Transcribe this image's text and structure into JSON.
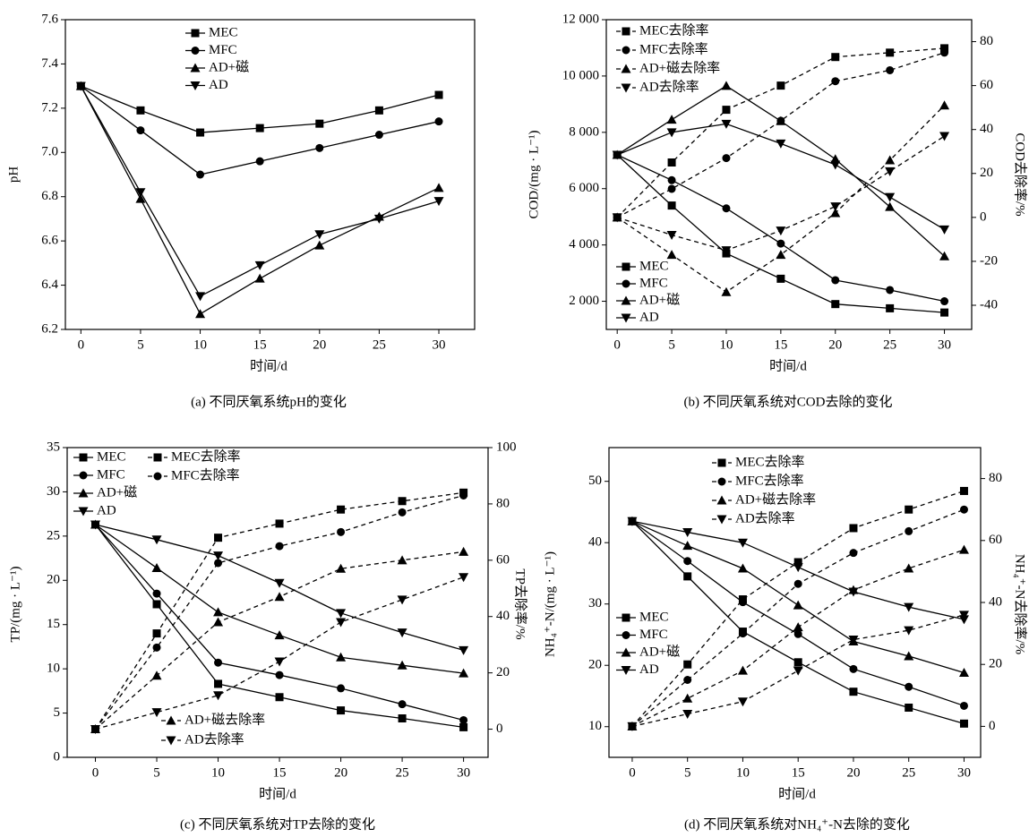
{
  "chart_data": [
    {
      "type": "line",
      "title": "(a) 不同厌氧系统pH的变化",
      "xlabel": "时间/d",
      "ylabel": "pH",
      "x": [
        0,
        5,
        10,
        15,
        20,
        25,
        30
      ],
      "xlim": [
        -1.3,
        33
      ],
      "xticks": [
        0,
        5,
        10,
        15,
        20,
        25,
        30
      ],
      "ylim": [
        6.2,
        7.6
      ],
      "yticks": [
        6.2,
        6.4,
        6.6,
        6.8,
        {
          "value": 7,
          "label": "7.0"
        },
        7.2,
        7.4,
        7.6
      ],
      "series": [
        {
          "name": "MEC",
          "color": "#000000",
          "marker": "square",
          "dashed": false,
          "values": [
            7.3,
            7.19,
            7.09,
            7.11,
            7.13,
            7.19,
            7.26
          ]
        },
        {
          "name": "MFC",
          "color": "#000000",
          "marker": "circle",
          "dashed": false,
          "values": [
            7.3,
            7.1,
            6.9,
            6.96,
            7.02,
            7.08,
            7.14
          ]
        },
        {
          "name": "AD+磁",
          "color": "#000000",
          "marker": "triangle-up",
          "dashed": false,
          "values": [
            7.3,
            6.79,
            6.27,
            6.43,
            6.58,
            6.71,
            6.84
          ]
        },
        {
          "name": "AD",
          "color": "#000000",
          "marker": "triangle-down",
          "dashed": false,
          "values": [
            7.3,
            6.82,
            6.35,
            6.49,
            6.63,
            6.7,
            6.78
          ]
        }
      ]
    },
    {
      "type": "line",
      "title": "(b) 不同厌氧系统对COD去除的变化",
      "xlabel": "时间/d",
      "ylabel": "COD/(mg · L⁻¹)",
      "y2label": "COD去除率/%",
      "x": [
        0,
        5,
        10,
        15,
        20,
        25,
        30
      ],
      "xlim": [
        -1,
        32.5
      ],
      "xticks": [
        0,
        5,
        10,
        15,
        20,
        25,
        30
      ],
      "ylim": [
        1000,
        12000
      ],
      "yticks": [
        {
          "value": 2000,
          "label": "2 000"
        },
        {
          "value": 4000,
          "label": "4 000"
        },
        {
          "value": 6000,
          "label": "6 000"
        },
        {
          "value": 8000,
          "label": "8 000"
        },
        {
          "value": 10000,
          "label": "10 000"
        },
        {
          "value": 12000,
          "label": "12 000"
        }
      ],
      "y2lim": [
        -51,
        90
      ],
      "y2ticks": [
        -40,
        -20,
        0,
        20,
        40,
        60,
        80
      ],
      "series": [
        {
          "name": "MEC",
          "color": "#000000",
          "marker": "square",
          "dashed": false,
          "values": [
            7200,
            5400,
            3700,
            2800,
            1900,
            1750,
            1600
          ]
        },
        {
          "name": "MFC",
          "color": "#000000",
          "marker": "circle",
          "dashed": false,
          "values": [
            7200,
            6300,
            5300,
            4050,
            2750,
            2400,
            2000
          ]
        },
        {
          "name": "AD+磁",
          "color": "#000000",
          "marker": "triangle-up",
          "dashed": false,
          "values": [
            7200,
            8450,
            9650,
            8400,
            7050,
            5350,
            3600
          ]
        },
        {
          "name": "AD",
          "color": "#000000",
          "marker": "triangle-down",
          "dashed": false,
          "values": [
            7200,
            8000,
            8300,
            7600,
            6850,
            5700,
            4550
          ]
        },
        {
          "name": "MEC去除率",
          "color": "#000000",
          "marker": "square",
          "dashed": true,
          "axis": "y2",
          "values": [
            0,
            25,
            49,
            60,
            73,
            75,
            77
          ]
        },
        {
          "name": "MFC去除率",
          "color": "#000000",
          "marker": "circle",
          "dashed": true,
          "axis": "y2",
          "values": [
            0,
            13,
            27,
            44,
            62,
            67,
            75
          ]
        },
        {
          "name": "AD+磁去除率",
          "color": "#000000",
          "marker": "triangle-up",
          "dashed": true,
          "axis": "y2",
          "values": [
            0,
            -17,
            -34,
            -17,
            2,
            26,
            51
          ]
        },
        {
          "name": "AD去除率",
          "color": "#000000",
          "marker": "triangle-down",
          "dashed": true,
          "axis": "y2",
          "values": [
            0,
            -8,
            -15,
            -6,
            5,
            21,
            37
          ]
        }
      ]
    },
    {
      "type": "line",
      "title": "(c) 不同厌氧系统对TP去除的变化",
      "xlabel": "时间/d",
      "ylabel": "TP/(mg · L⁻¹)",
      "y2label": "TP去除率/%",
      "x": [
        0,
        5,
        10,
        15,
        20,
        25,
        30
      ],
      "xlim": [
        -2.3,
        32
      ],
      "xticks": [
        0,
        5,
        10,
        15,
        20,
        25,
        30
      ],
      "ylim": [
        0,
        35
      ],
      "yticks": [
        0,
        5,
        10,
        15,
        20,
        25,
        30,
        35
      ],
      "y2lim": [
        -10,
        100
      ],
      "y2ticks": [
        0,
        20,
        40,
        60,
        80,
        100
      ],
      "series": [
        {
          "name": "MEC",
          "color": "#000000",
          "marker": "square",
          "dashed": false,
          "values": [
            26.3,
            17.3,
            8.3,
            6.8,
            5.3,
            4.4,
            3.4
          ]
        },
        {
          "name": "MFC",
          "color": "#000000",
          "marker": "circle",
          "dashed": false,
          "values": [
            26.3,
            18.5,
            10.7,
            9.3,
            7.8,
            6.0,
            4.2
          ]
        },
        {
          "name": "AD+磁",
          "color": "#000000",
          "marker": "triangle-up",
          "dashed": false,
          "values": [
            26.3,
            21.4,
            16.4,
            13.8,
            11.3,
            10.4,
            9.5
          ]
        },
        {
          "name": "AD",
          "color": "#000000",
          "marker": "triangle-down",
          "dashed": false,
          "values": [
            26.3,
            24.6,
            22.8,
            19.7,
            16.3,
            14.1,
            12.1
          ]
        },
        {
          "name": "MEC去除率",
          "color": "#000000",
          "marker": "square",
          "dashed": true,
          "axis": "y2",
          "values": [
            0,
            34,
            68,
            73,
            78,
            81,
            84
          ]
        },
        {
          "name": "MFC去除率",
          "color": "#000000",
          "marker": "circle",
          "dashed": true,
          "axis": "y2",
          "values": [
            0,
            29,
            59,
            65,
            70,
            77,
            83
          ]
        },
        {
          "name": "AD+磁去除率",
          "color": "#000000",
          "marker": "triangle-up",
          "dashed": true,
          "axis": "y2",
          "values": [
            0,
            19,
            38,
            47,
            57,
            60,
            63
          ]
        },
        {
          "name": "AD去除率",
          "color": "#000000",
          "marker": "triangle-down",
          "dashed": true,
          "axis": "y2",
          "values": [
            0,
            6,
            12,
            24,
            38,
            46,
            54
          ]
        }
      ]
    },
    {
      "type": "line",
      "title": "(d) 不同厌氧系统对NH₄⁺-N去除的变化",
      "xlabel": "时间/d",
      "ylabel": "NH₄⁺-N/(mg · L⁻¹)",
      "y2label": "NH₄⁺-N去除率/%",
      "x": [
        0,
        5,
        10,
        15,
        20,
        25,
        30
      ],
      "xlim": [
        -2.1,
        31.5
      ],
      "xticks": [
        0,
        5,
        10,
        15,
        20,
        25,
        30
      ],
      "ylim": [
        5,
        55.5
      ],
      "yticks": [
        10,
        20,
        30,
        40,
        50
      ],
      "y2lim": [
        -10,
        90
      ],
      "y2ticks": [
        0,
        20,
        40,
        60,
        80
      ],
      "series": [
        {
          "name": "MEC",
          "color": "#000000",
          "marker": "square",
          "dashed": false,
          "values": [
            43.5,
            34.5,
            25.5,
            20.5,
            15.7,
            13.1,
            10.5
          ]
        },
        {
          "name": "MFC",
          "color": "#000000",
          "marker": "circle",
          "dashed": false,
          "values": [
            43.5,
            37,
            30.3,
            25.1,
            19.4,
            16.5,
            13.4
          ]
        },
        {
          "name": "AD+磁",
          "color": "#000000",
          "marker": "triangle-up",
          "dashed": false,
          "values": [
            43.5,
            39.5,
            35.8,
            29.8,
            23.9,
            21.5,
            18.8
          ]
        },
        {
          "name": "AD",
          "color": "#000000",
          "marker": "triangle-down",
          "dashed": false,
          "values": [
            43.5,
            41.7,
            40,
            36,
            32,
            29.5,
            27.5
          ]
        },
        {
          "name": "MEC去除率",
          "color": "#000000",
          "marker": "square",
          "dashed": true,
          "axis": "y2",
          "values": [
            0,
            20,
            41,
            53,
            64,
            70,
            76
          ]
        },
        {
          "name": "MFC去除率",
          "color": "#000000",
          "marker": "circle",
          "dashed": true,
          "axis": "y2",
          "values": [
            0,
            15,
            30,
            46,
            56,
            63,
            70
          ]
        },
        {
          "name": "AD+磁去除率",
          "color": "#000000",
          "marker": "triangle-up",
          "dashed": true,
          "axis": "y2",
          "values": [
            0,
            9,
            18,
            32,
            44,
            51,
            57
          ]
        },
        {
          "name": "AD去除率",
          "color": "#000000",
          "marker": "triangle-down",
          "dashed": true,
          "axis": "y2",
          "values": [
            0,
            4,
            8,
            18,
            28,
            31,
            36
          ]
        }
      ]
    }
  ]
}
